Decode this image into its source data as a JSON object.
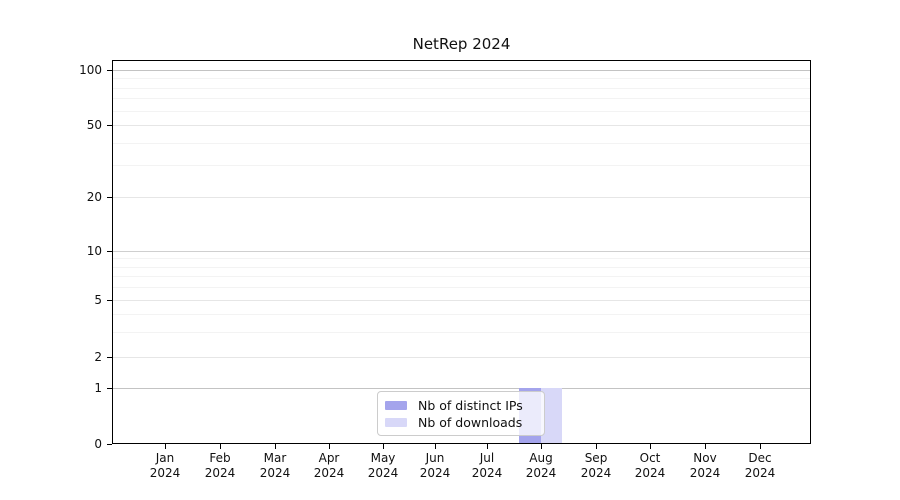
{
  "title": "NetRep 2024",
  "y_axis": {
    "tick_labels": [
      "100",
      "50",
      "20",
      "10",
      "5",
      "2",
      "1",
      "0"
    ]
  },
  "x_axis": {
    "months": [
      "Jan",
      "Feb",
      "Mar",
      "Apr",
      "May",
      "Jun",
      "Jul",
      "Aug",
      "Sep",
      "Oct",
      "Nov",
      "Dec"
    ],
    "year": "2024"
  },
  "legend": {
    "items": [
      {
        "label": "Nb of distinct IPs",
        "color": "#a4a4ec"
      },
      {
        "label": "Nb of downloads",
        "color": "#d8d8f8"
      }
    ]
  },
  "chart_data": {
    "type": "bar",
    "title": "NetRep 2024",
    "categories": [
      "Jan 2024",
      "Feb 2024",
      "Mar 2024",
      "Apr 2024",
      "May 2024",
      "Jun 2024",
      "Jul 2024",
      "Aug 2024",
      "Sep 2024",
      "Oct 2024",
      "Nov 2024",
      "Dec 2024"
    ],
    "series": [
      {
        "name": "Nb of distinct IPs",
        "color": "#a4a4ec",
        "values": [
          0,
          0,
          0,
          0,
          0,
          0,
          0,
          1,
          0,
          0,
          0,
          0
        ]
      },
      {
        "name": "Nb of downloads",
        "color": "#d8d8f8",
        "values": [
          0,
          0,
          0,
          0,
          0,
          0,
          0,
          1,
          0,
          0,
          0,
          0
        ]
      }
    ],
    "xlabel": "",
    "ylabel": "",
    "y_ticks": [
      0,
      1,
      2,
      5,
      10,
      20,
      50,
      100
    ],
    "y_scale": "log-like with zero baseline",
    "ylim": [
      0,
      120
    ],
    "grid": "horizontal, log minor gridlines",
    "legend_position": "bottom-center inside plot"
  }
}
